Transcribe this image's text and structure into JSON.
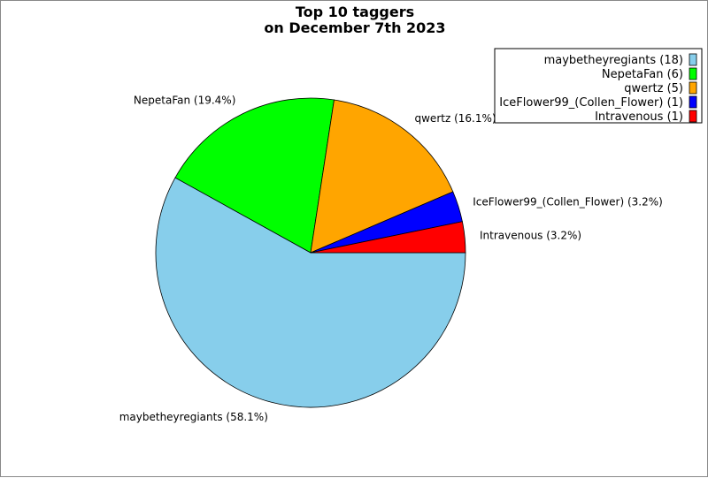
{
  "chart_data": {
    "type": "pie",
    "title": [
      "Top 10 taggers",
      "on December 7th 2023"
    ],
    "slices": [
      {
        "name": "maybetheyregiants",
        "value": 18,
        "percent": "58.1%",
        "color": "#87CEEB"
      },
      {
        "name": "NepetaFan",
        "value": 6,
        "percent": "19.4%",
        "color": "#00FF00"
      },
      {
        "name": "qwertz",
        "value": 5,
        "percent": "16.1%",
        "color": "#FFA500"
      },
      {
        "name": "IceFlower99_(Collen_Flower)",
        "value": 1,
        "percent": "3.2%",
        "color": "#0000FF"
      },
      {
        "name": "Intravenous",
        "value": 1,
        "percent": "3.2%",
        "color": "#FF0000"
      }
    ],
    "legend_position": "top-right"
  }
}
